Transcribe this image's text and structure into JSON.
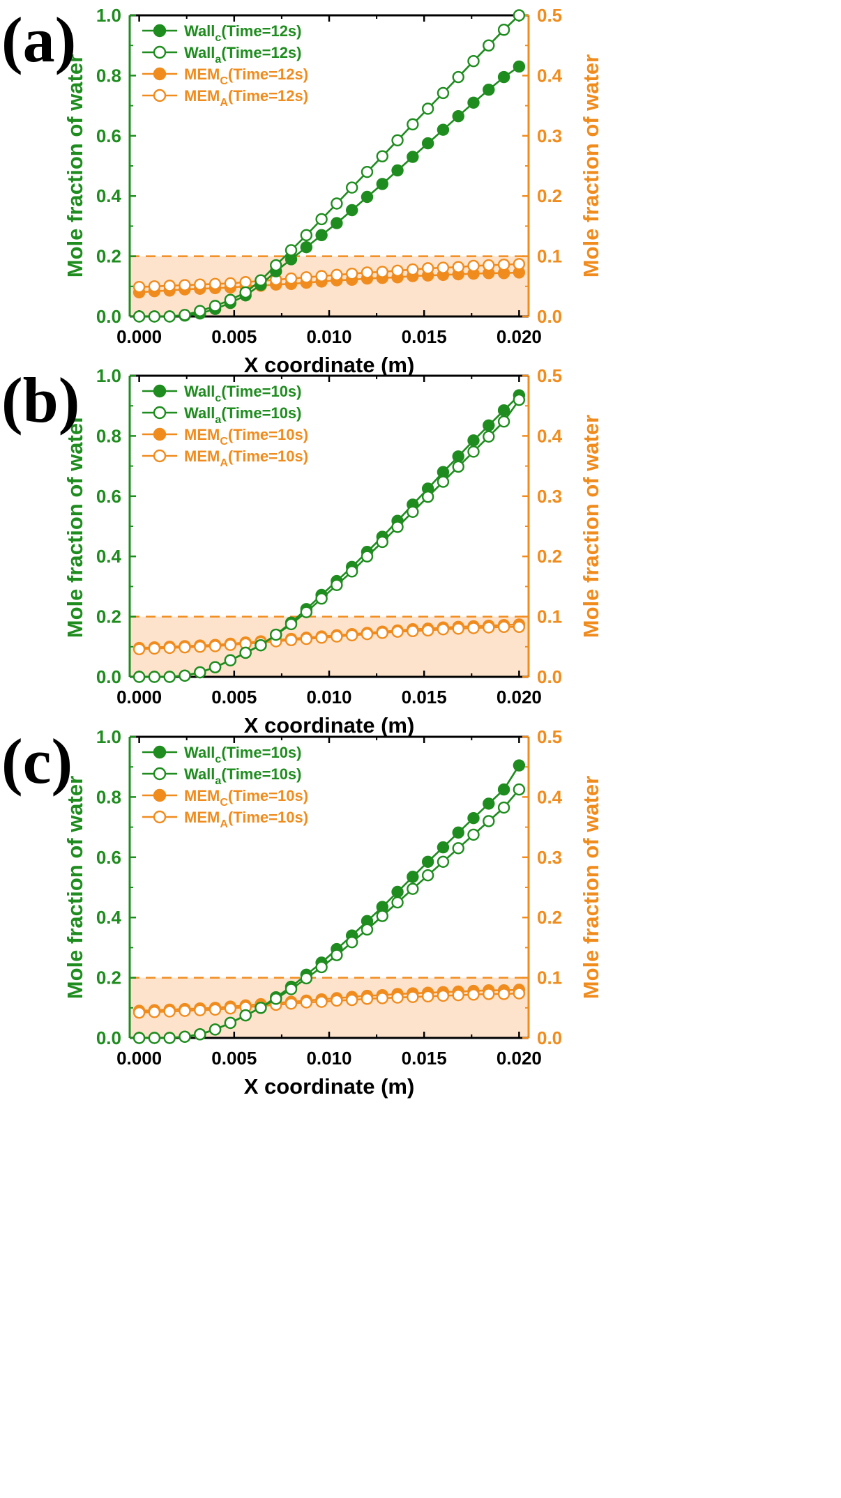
{
  "chart_data": [
    {
      "type": "line",
      "panel_label": "(a)",
      "xlabel": "X coordinate (m)",
      "ylabel_left": "Mole fraction of water",
      "ylabel_right": "Mole fraction of water",
      "xlim": [
        -0.0005,
        0.0205
      ],
      "ylim_left": [
        0,
        1.0
      ],
      "ylim_right": [
        0,
        0.5
      ],
      "x_ticks": [
        "0.000",
        "0.005",
        "0.010",
        "0.015",
        "0.020"
      ],
      "y_ticks_left": [
        "0.0",
        "0.2",
        "0.4",
        "0.6",
        "0.8",
        "1.0"
      ],
      "y_ticks_right": [
        "0.0",
        "0.1",
        "0.2",
        "0.3",
        "0.4",
        "0.5"
      ],
      "threshold_right": 0.1,
      "x": [
        0.0,
        0.0008,
        0.0016,
        0.0024,
        0.0032,
        0.004,
        0.0048,
        0.0056,
        0.0064,
        0.0072,
        0.008,
        0.0088,
        0.0096,
        0.0104,
        0.0112,
        0.012,
        0.0128,
        0.0136,
        0.0144,
        0.0152,
        0.016,
        0.0168,
        0.0176,
        0.0184,
        0.0192,
        0.02
      ],
      "series": [
        {
          "name": "Wall",
          "sub": "c",
          "suffix": "(Time=12s)",
          "axis": "left",
          "color": "#1e8c1e",
          "filled": true,
          "values": [
            0.0,
            0.0,
            0.0,
            0.003,
            0.01,
            0.025,
            0.045,
            0.07,
            0.105,
            0.15,
            0.19,
            0.23,
            0.27,
            0.31,
            0.353,
            0.397,
            0.44,
            0.485,
            0.53,
            0.575,
            0.62,
            0.665,
            0.71,
            0.753,
            0.795,
            0.83
          ]
        },
        {
          "name": "Wall",
          "sub": "a",
          "suffix": "(Time=12s)",
          "axis": "left",
          "color": "#1e8c1e",
          "filled": false,
          "values": [
            0.0,
            0.0,
            0.0,
            0.005,
            0.018,
            0.035,
            0.055,
            0.08,
            0.12,
            0.17,
            0.22,
            0.27,
            0.323,
            0.375,
            0.428,
            0.48,
            0.532,
            0.585,
            0.638,
            0.69,
            0.742,
            0.795,
            0.848,
            0.9,
            0.952,
            1.0
          ]
        },
        {
          "name": "MEM",
          "sub": "C",
          "suffix": "(Time=12s)",
          "axis": "right",
          "color": "#f08c1e",
          "filled": true,
          "values": [
            0.04,
            0.042,
            0.043,
            0.045,
            0.046,
            0.047,
            0.048,
            0.05,
            0.051,
            0.053,
            0.054,
            0.056,
            0.058,
            0.06,
            0.061,
            0.063,
            0.064,
            0.065,
            0.067,
            0.068,
            0.069,
            0.07,
            0.071,
            0.072,
            0.072,
            0.073
          ]
        },
        {
          "name": "MEM",
          "sub": "A",
          "suffix": "(Time=12s)",
          "axis": "right",
          "color": "#f08c1e",
          "filled": false,
          "values": [
            0.049,
            0.05,
            0.051,
            0.052,
            0.053,
            0.054,
            0.055,
            0.057,
            0.059,
            0.061,
            0.063,
            0.065,
            0.067,
            0.069,
            0.071,
            0.073,
            0.074,
            0.076,
            0.078,
            0.08,
            0.081,
            0.082,
            0.084,
            0.085,
            0.086,
            0.087
          ]
        }
      ]
    },
    {
      "type": "line",
      "panel_label": "(b)",
      "xlabel": "X coordinate (m)",
      "ylabel_left": "Mole fraction of water",
      "ylabel_right": "Mole fraction of water",
      "xlim": [
        -0.0005,
        0.0205
      ],
      "ylim_left": [
        0,
        1.0
      ],
      "ylim_right": [
        0,
        0.5
      ],
      "x_ticks": [
        "0.000",
        "0.005",
        "0.010",
        "0.015",
        "0.020"
      ],
      "y_ticks_left": [
        "0.0",
        "0.2",
        "0.4",
        "0.6",
        "0.8",
        "1.0"
      ],
      "y_ticks_right": [
        "0.0",
        "0.1",
        "0.2",
        "0.3",
        "0.4",
        "0.5"
      ],
      "threshold_right": 0.1,
      "x": [
        0.0,
        0.0008,
        0.0016,
        0.0024,
        0.0032,
        0.004,
        0.0048,
        0.0056,
        0.0064,
        0.0072,
        0.008,
        0.0088,
        0.0096,
        0.0104,
        0.0112,
        0.012,
        0.0128,
        0.0136,
        0.0144,
        0.0152,
        0.016,
        0.0168,
        0.0176,
        0.0184,
        0.0192,
        0.02
      ],
      "series": [
        {
          "name": "Wall",
          "sub": "c",
          "suffix": "(Time=10s)",
          "axis": "left",
          "color": "#1e8c1e",
          "filled": true,
          "values": [
            0.0,
            0.0,
            0.0,
            0.004,
            0.015,
            0.032,
            0.055,
            0.08,
            0.105,
            0.14,
            0.18,
            0.225,
            0.272,
            0.318,
            0.365,
            0.415,
            0.465,
            0.518,
            0.572,
            0.625,
            0.68,
            0.732,
            0.785,
            0.835,
            0.885,
            0.935
          ]
        },
        {
          "name": "Wall",
          "sub": "a",
          "suffix": "(Time=10s)",
          "axis": "left",
          "color": "#1e8c1e",
          "filled": false,
          "values": [
            0.0,
            0.0,
            0.0,
            0.004,
            0.015,
            0.032,
            0.055,
            0.08,
            0.105,
            0.14,
            0.175,
            0.215,
            0.26,
            0.305,
            0.35,
            0.4,
            0.448,
            0.498,
            0.548,
            0.598,
            0.648,
            0.698,
            0.748,
            0.798,
            0.848,
            0.92
          ]
        },
        {
          "name": "MEM",
          "sub": "C",
          "suffix": "(Time=10s)",
          "axis": "right",
          "color": "#f08c1e",
          "filled": true,
          "values": [
            0.048,
            0.049,
            0.05,
            0.051,
            0.052,
            0.053,
            0.055,
            0.057,
            0.059,
            0.061,
            0.063,
            0.065,
            0.067,
            0.069,
            0.071,
            0.073,
            0.075,
            0.077,
            0.079,
            0.08,
            0.082,
            0.083,
            0.084,
            0.085,
            0.086,
            0.087
          ]
        },
        {
          "name": "MEM",
          "sub": "A",
          "suffix": "(Time=10s)",
          "axis": "right",
          "color": "#f08c1e",
          "filled": false,
          "values": [
            0.046,
            0.047,
            0.048,
            0.049,
            0.05,
            0.051,
            0.053,
            0.055,
            0.057,
            0.059,
            0.061,
            0.063,
            0.065,
            0.067,
            0.069,
            0.071,
            0.073,
            0.075,
            0.076,
            0.077,
            0.079,
            0.08,
            0.081,
            0.082,
            0.083,
            0.083
          ]
        }
      ]
    },
    {
      "type": "line",
      "panel_label": "(c)",
      "xlabel": "X coordinate (m)",
      "ylabel_left": "Mole fraction of water",
      "ylabel_right": "Mole fraction of water",
      "xlim": [
        -0.0005,
        0.0205
      ],
      "ylim_left": [
        0,
        1.0
      ],
      "ylim_right": [
        0,
        0.5
      ],
      "x_ticks": [
        "0.000",
        "0.005",
        "0.010",
        "0.015",
        "0.020"
      ],
      "y_ticks_left": [
        "0.0",
        "0.2",
        "0.4",
        "0.6",
        "0.8",
        "1.0"
      ],
      "y_ticks_right": [
        "0.0",
        "0.1",
        "0.2",
        "0.3",
        "0.4",
        "0.5"
      ],
      "threshold_right": 0.1,
      "x": [
        0.0,
        0.0008,
        0.0016,
        0.0024,
        0.0032,
        0.004,
        0.0048,
        0.0056,
        0.0064,
        0.0072,
        0.008,
        0.0088,
        0.0096,
        0.0104,
        0.0112,
        0.012,
        0.0128,
        0.0136,
        0.0144,
        0.0152,
        0.016,
        0.0168,
        0.0176,
        0.0184,
        0.0192,
        0.02
      ],
      "series": [
        {
          "name": "Wall",
          "sub": "c",
          "suffix": "(Time=10s)",
          "axis": "left",
          "color": "#1e8c1e",
          "filled": true,
          "values": [
            0.0,
            0.0,
            0.0,
            0.004,
            0.012,
            0.028,
            0.05,
            0.075,
            0.1,
            0.135,
            0.17,
            0.21,
            0.25,
            0.295,
            0.34,
            0.388,
            0.435,
            0.485,
            0.535,
            0.585,
            0.633,
            0.682,
            0.73,
            0.778,
            0.825,
            0.905
          ]
        },
        {
          "name": "Wall",
          "sub": "a",
          "suffix": "(Time=10s)",
          "axis": "left",
          "color": "#1e8c1e",
          "filled": false,
          "values": [
            0.0,
            0.0,
            0.0,
            0.004,
            0.012,
            0.028,
            0.05,
            0.075,
            0.1,
            0.13,
            0.162,
            0.198,
            0.235,
            0.275,
            0.318,
            0.36,
            0.405,
            0.45,
            0.495,
            0.54,
            0.585,
            0.63,
            0.675,
            0.72,
            0.765,
            0.825
          ]
        },
        {
          "name": "MEM",
          "sub": "C",
          "suffix": "(Time=10s)",
          "axis": "right",
          "color": "#f08c1e",
          "filled": true,
          "values": [
            0.045,
            0.046,
            0.047,
            0.048,
            0.049,
            0.05,
            0.052,
            0.054,
            0.056,
            0.058,
            0.06,
            0.062,
            0.064,
            0.066,
            0.068,
            0.07,
            0.071,
            0.073,
            0.074,
            0.075,
            0.076,
            0.077,
            0.078,
            0.079,
            0.079,
            0.08
          ]
        },
        {
          "name": "MEM",
          "sub": "A",
          "suffix": "(Time=10s)",
          "axis": "right",
          "color": "#f08c1e",
          "filled": false,
          "values": [
            0.042,
            0.043,
            0.044,
            0.045,
            0.046,
            0.047,
            0.049,
            0.051,
            0.053,
            0.055,
            0.057,
            0.059,
            0.06,
            0.062,
            0.063,
            0.065,
            0.066,
            0.067,
            0.068,
            0.069,
            0.07,
            0.071,
            0.072,
            0.073,
            0.073,
            0.074
          ]
        }
      ]
    }
  ]
}
